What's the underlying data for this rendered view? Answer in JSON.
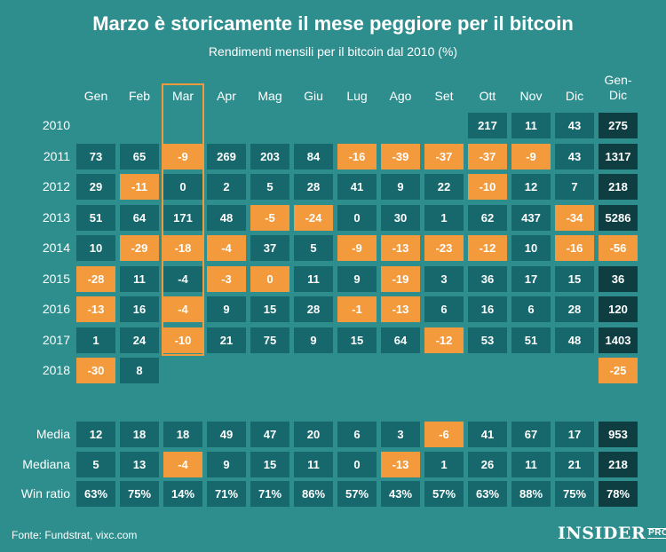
{
  "title": "Marzo è storicamente il mese peggiore per il bitcoin",
  "subtitle": "Rendimenti mensili per il bitcoin dal 2010 (%)",
  "source": "Fonte: Fundstrat, vixc.com",
  "logo": {
    "text": "INSIDER",
    "suffix": "PRO"
  },
  "colors": {
    "background": "#2e8e8e",
    "positive": "#17686d",
    "negative": "#f39a3c",
    "total": "#0e3d42"
  },
  "chart_data": {
    "type": "table",
    "title": "Marzo è storicamente il mese peggiore per il bitcoin",
    "subtitle": "Rendimenti mensili per il bitcoin dal 2010 (%)",
    "columns": [
      "Gen",
      "Feb",
      "Mar",
      "Apr",
      "Mag",
      "Giu",
      "Lug",
      "Ago",
      "Set",
      "Ott",
      "Nov",
      "Dic",
      "Gen-\nDic"
    ],
    "highlighted_column": "Mar",
    "rows": [
      {
        "label": "2010",
        "values": [
          null,
          null,
          null,
          null,
          null,
          null,
          null,
          null,
          null,
          "217",
          "11",
          "43",
          "275"
        ]
      },
      {
        "label": "2011",
        "values": [
          "73",
          "65",
          "-9",
          "269",
          "203",
          "84",
          "-16",
          "-39",
          "-37",
          "-37",
          "-9",
          "43",
          "1317"
        ]
      },
      {
        "label": "2012",
        "values": [
          "29",
          "-11",
          "0",
          "2",
          "5",
          "28",
          "41",
          "9",
          "22",
          "-10",
          "12",
          "7",
          "218"
        ]
      },
      {
        "label": "2013",
        "values": [
          "51",
          "64",
          "171",
          "48",
          "-5",
          "-24",
          "0",
          "30",
          "1",
          "62",
          "437",
          "-34",
          "5286"
        ]
      },
      {
        "label": "2014",
        "values": [
          "10",
          "-29",
          "-18",
          "-4",
          "37",
          "5",
          "-9",
          "-13",
          "-23",
          "-12",
          "10",
          "-16",
          "-56"
        ]
      },
      {
        "label": "2015",
        "values": [
          "-28",
          "11",
          "-4",
          "-3",
          "0",
          "11",
          "9",
          "-19",
          "3",
          "36",
          "17",
          "15",
          "36"
        ]
      },
      {
        "label": "2016",
        "values": [
          "-13",
          "16",
          "-4",
          "9",
          "15",
          "28",
          "-1",
          "-13",
          "6",
          "16",
          "6",
          "28",
          "120"
        ]
      },
      {
        "label": "2017",
        "values": [
          "1",
          "24",
          "-10",
          "21",
          "75",
          "9",
          "15",
          "64",
          "-12",
          "53",
          "51",
          "48",
          "1403"
        ]
      },
      {
        "label": "2018",
        "values": [
          "-30",
          "8",
          null,
          null,
          null,
          null,
          null,
          null,
          null,
          null,
          null,
          null,
          "-25"
        ]
      }
    ],
    "summary_rows": [
      {
        "label": "Media",
        "values": [
          "12",
          "18",
          "18",
          "49",
          "47",
          "20",
          "6",
          "3",
          "-6",
          "41",
          "67",
          "17",
          "953"
        ]
      },
      {
        "label": "Mediana",
        "values": [
          "5",
          "13",
          "-4",
          "9",
          "15",
          "11",
          "0",
          "-13",
          "1",
          "26",
          "11",
          "21",
          "218"
        ]
      },
      {
        "label": "Win ratio",
        "values": [
          "63%",
          "75%",
          "14%",
          "71%",
          "71%",
          "86%",
          "57%",
          "43%",
          "57%",
          "63%",
          "88%",
          "75%",
          "78%"
        ]
      }
    ],
    "negative_cells": {
      "2010": [],
      "2011": [
        2,
        6,
        7,
        8,
        9,
        10
      ],
      "2012": [
        1,
        9
      ],
      "2013": [
        4,
        5,
        11
      ],
      "2014": [
        1,
        2,
        3,
        6,
        7,
        8,
        9,
        11,
        12
      ],
      "2015": [
        0,
        3,
        4,
        7
      ],
      "2016": [
        0,
        2,
        6,
        7
      ],
      "2017": [
        2,
        8
      ],
      "2018": [
        0,
        12
      ],
      "Media": [
        8
      ],
      "Mediana": [
        2,
        7
      ],
      "Win ratio": []
    }
  }
}
